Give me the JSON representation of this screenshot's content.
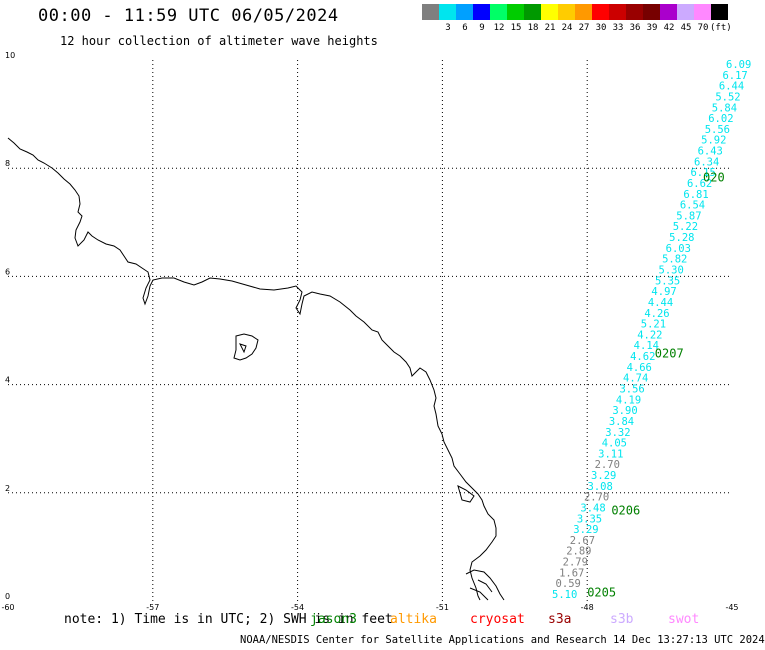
{
  "header": {
    "title": "00:00 - 11:59 UTC 06/05/2024",
    "subtitle": "12 hour collection of altimeter wave heights"
  },
  "color_scale": {
    "unit": "(ft)",
    "bins": [
      {
        "label": "",
        "color": "#7f7f7f"
      },
      {
        "label": "3",
        "color": "#00e5ee"
      },
      {
        "label": "6",
        "color": "#00a0ff"
      },
      {
        "label": "9",
        "color": "#0000ff"
      },
      {
        "label": "12",
        "color": "#00ff66"
      },
      {
        "label": "15",
        "color": "#00cc00"
      },
      {
        "label": "18",
        "color": "#009900"
      },
      {
        "label": "21",
        "color": "#ffff00"
      },
      {
        "label": "24",
        "color": "#ffcc00"
      },
      {
        "label": "27",
        "color": "#ff9900"
      },
      {
        "label": "30",
        "color": "#ff0000"
      },
      {
        "label": "33",
        "color": "#cc0000"
      },
      {
        "label": "36",
        "color": "#990000"
      },
      {
        "label": "39",
        "color": "#770000"
      },
      {
        "label": "42",
        "color": "#aa00cc"
      },
      {
        "label": "45",
        "color": "#ccaaff"
      },
      {
        "label": "70",
        "color": "#ff88ff"
      },
      {
        "label": "",
        "color": "#000000"
      }
    ]
  },
  "map": {
    "lon_labels": [
      "-60",
      "-57",
      "-54",
      "-51",
      "-48",
      "-45"
    ],
    "lat_labels": [
      "0",
      "2",
      "4",
      "6",
      "8",
      "10"
    ],
    "lon_range": [
      -60,
      -45
    ],
    "lat_range": [
      0,
      10
    ],
    "track_labels": [
      {
        "text": "0205",
        "lon": -48.0,
        "lat": 0.08,
        "color": "#008000"
      },
      {
        "text": "0206",
        "lon": -47.5,
        "lat": 1.6,
        "color": "#008000"
      },
      {
        "text": "0207",
        "lon": -46.6,
        "lat": 4.5,
        "color": "#008000"
      },
      {
        "text": "020",
        "lon": -45.6,
        "lat": 7.75,
        "color": "#008000"
      }
    ],
    "observations": [
      {
        "value": "5.10",
        "color": "#00e5ee"
      },
      {
        "value": "0.59",
        "color": "#7f7f7f"
      },
      {
        "value": "1.67",
        "color": "#7f7f7f"
      },
      {
        "value": "2.79",
        "color": "#7f7f7f"
      },
      {
        "value": "2.89",
        "color": "#7f7f7f"
      },
      {
        "value": "2.67",
        "color": "#7f7f7f"
      },
      {
        "value": "3.29",
        "color": "#00e5ee"
      },
      {
        "value": "3.35",
        "color": "#00e5ee"
      },
      {
        "value": "3.48",
        "color": "#00e5ee"
      },
      {
        "value": "2.70",
        "color": "#7f7f7f"
      },
      {
        "value": "3.08",
        "color": "#00e5ee"
      },
      {
        "value": "3.29",
        "color": "#00e5ee"
      },
      {
        "value": "2.70",
        "color": "#7f7f7f"
      },
      {
        "value": "3.11",
        "color": "#00e5ee"
      },
      {
        "value": "4.05",
        "color": "#00e5ee"
      },
      {
        "value": "3.32",
        "color": "#00e5ee"
      },
      {
        "value": "3.84",
        "color": "#00e5ee"
      },
      {
        "value": "3.90",
        "color": "#00e5ee"
      },
      {
        "value": "4.19",
        "color": "#00e5ee"
      },
      {
        "value": "3.56",
        "color": "#00e5ee"
      },
      {
        "value": "4.74",
        "color": "#00e5ee"
      },
      {
        "value": "4.66",
        "color": "#00e5ee"
      },
      {
        "value": "4.62",
        "color": "#00e5ee"
      },
      {
        "value": "4.14",
        "color": "#00e5ee"
      },
      {
        "value": "4.22",
        "color": "#00e5ee"
      },
      {
        "value": "5.21",
        "color": "#00e5ee"
      },
      {
        "value": "4.26",
        "color": "#00e5ee"
      },
      {
        "value": "4.44",
        "color": "#00e5ee"
      },
      {
        "value": "4.97",
        "color": "#00e5ee"
      },
      {
        "value": "5.35",
        "color": "#00e5ee"
      },
      {
        "value": "5.30",
        "color": "#00e5ee"
      },
      {
        "value": "5.82",
        "color": "#00e5ee"
      },
      {
        "value": "6.03",
        "color": "#00e5ee"
      },
      {
        "value": "5.28",
        "color": "#00e5ee"
      },
      {
        "value": "5.22",
        "color": "#00e5ee"
      },
      {
        "value": "5.87",
        "color": "#00e5ee"
      },
      {
        "value": "6.54",
        "color": "#00e5ee"
      },
      {
        "value": "6.81",
        "color": "#00e5ee"
      },
      {
        "value": "6.62",
        "color": "#00e5ee"
      },
      {
        "value": "6.15",
        "color": "#00e5ee"
      },
      {
        "value": "6.34",
        "color": "#00e5ee"
      },
      {
        "value": "6.43",
        "color": "#00e5ee"
      },
      {
        "value": "5.92",
        "color": "#00e5ee"
      },
      {
        "value": "5.56",
        "color": "#00e5ee"
      },
      {
        "value": "6.02",
        "color": "#00e5ee"
      },
      {
        "value": "5.84",
        "color": "#00e5ee"
      },
      {
        "value": "5.52",
        "color": "#00e5ee"
      },
      {
        "value": "6.44",
        "color": "#00e5ee"
      },
      {
        "value": "6.17",
        "color": "#00e5ee"
      },
      {
        "value": "6.09",
        "color": "#00e5ee"
      }
    ]
  },
  "footer": {
    "note": "note: 1) Time is in UTC; 2) SWH is in feet",
    "satellites": [
      {
        "name": "jason3",
        "color": "#008000"
      },
      {
        "name": "altika",
        "color": "#ff9900"
      },
      {
        "name": "cryosat",
        "color": "#ff0000"
      },
      {
        "name": "s3a",
        "color": "#990000"
      },
      {
        "name": "s3b",
        "color": "#ccaaff"
      },
      {
        "name": "swot",
        "color": "#ff88ff"
      }
    ],
    "credit": "NOAA/NESDIS Center for Satellite Applications and Research   14 Dec 13:27:13 UTC 2024"
  }
}
